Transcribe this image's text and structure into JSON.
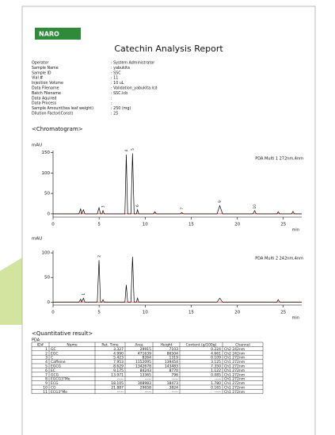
{
  "logo": "NARO",
  "title": "Catechin Analysis Report",
  "info": [
    {
      "label": "Operator",
      "value": ": System Administrator"
    },
    {
      "label": "Sample Name",
      "value": ": yabukita"
    },
    {
      "label": "Sample ID",
      "value": ": SSC"
    },
    {
      "label": "Vial #",
      "value": ": 11"
    },
    {
      "label": "Injection Volume",
      "value": ": 10 uL"
    },
    {
      "label": "Data Filename",
      "value": ": Validation_yabukita.lcd"
    },
    {
      "label": "Batch Filename",
      "value": ": SSC.lcb"
    },
    {
      "label": "Data Aquired",
      "value": ":"
    },
    {
      "label": "Data Process",
      "value": ":"
    },
    {
      "label": "Sample Amount(tea leaf weight)",
      "value": ": 250 (mg)"
    },
    {
      "label": "Dilution Factor(Const)",
      "value": ": 25"
    }
  ],
  "chromatogram_heading": "<Chromatogram>",
  "charts": [
    {
      "type": "line",
      "y_label": "mAU",
      "channel_label": "PDA Multi 1 272nm,4nm",
      "x_label": "min",
      "xlim": [
        0,
        27
      ],
      "xticks": [
        0,
        5,
        10,
        15,
        20,
        25
      ],
      "ylim": [
        -8,
        155
      ],
      "yticks": [
        0,
        50,
        100,
        150
      ],
      "color": "#000000",
      "baseline_color": "#e03020",
      "x": [
        0,
        2.8,
        3.0,
        3.1,
        3.3,
        3.45,
        4.8,
        4.99,
        5.15,
        5.3,
        5.42,
        5.55,
        7.8,
        7.95,
        8.1,
        8.45,
        8.63,
        8.8,
        9.05,
        9.17,
        9.3,
        10.9,
        11.05,
        11.2,
        13.8,
        13.97,
        14.15,
        17.8,
        18.1,
        18.4,
        21.7,
        21.89,
        22.05,
        24.3,
        24.45,
        24.6,
        25.9,
        26.05,
        26.2,
        27
      ],
      "y": [
        0,
        0,
        12,
        0,
        10,
        0,
        0,
        15,
        0,
        0,
        8,
        0,
        0,
        145,
        0,
        0,
        148,
        0,
        0,
        10,
        0,
        0,
        5,
        0,
        0,
        3,
        0,
        0,
        20,
        0,
        0,
        8,
        0,
        0,
        5,
        0,
        0,
        6,
        0,
        0
      ],
      "peaks": [
        {
          "label": "3",
          "x": 5.42,
          "y": 8
        },
        {
          "label": "4",
          "x": 7.95,
          "y": 145
        },
        {
          "label": "5",
          "x": 8.63,
          "y": 148
        },
        {
          "label": "6",
          "x": 9.17,
          "y": 10
        },
        {
          "label": "7",
          "x": 13.97,
          "y": 3
        },
        {
          "label": "9",
          "x": 18.1,
          "y": 20
        },
        {
          "label": "10",
          "x": 21.89,
          "y": 8
        }
      ]
    },
    {
      "type": "line",
      "y_label": "mAU",
      "channel_label": "PDA Multi 2 242nm,4nm",
      "x_label": "min",
      "xlim": [
        0,
        27
      ],
      "xticks": [
        0,
        5,
        10,
        15,
        20,
        25
      ],
      "ylim": [
        -6,
        105
      ],
      "yticks": [
        0,
        50,
        100
      ],
      "color": "#000000",
      "baseline_color": "#e03020",
      "x": [
        0,
        2.8,
        3.0,
        3.1,
        3.3,
        3.45,
        4.8,
        4.99,
        5.15,
        5.3,
        5.42,
        5.55,
        7.8,
        7.95,
        8.1,
        8.45,
        8.63,
        8.8,
        9.05,
        9.17,
        9.3,
        17.8,
        18.1,
        18.4,
        24.3,
        24.45,
        24.6,
        27
      ],
      "y": [
        0,
        0,
        6,
        0,
        8,
        0,
        0,
        85,
        0,
        0,
        5,
        0,
        0,
        35,
        0,
        0,
        92,
        0,
        0,
        8,
        0,
        0,
        8,
        0,
        0,
        5,
        0,
        0
      ],
      "peaks": [
        {
          "label": "1",
          "x": 3.3,
          "y": 8
        },
        {
          "label": "2",
          "x": 4.99,
          "y": 85
        }
      ]
    }
  ],
  "quantitative_heading": "<Quantitative result>",
  "table": {
    "caption": "PDA",
    "columns": [
      "ID#",
      "Name",
      "Ret. Time",
      "Area",
      "Height",
      "Content (g/100g)",
      "Channel"
    ],
    "rows": [
      [
        "1",
        "GC",
        "3.327",
        "29915",
        "7103",
        "0.224",
        "Ch2 242nm"
      ],
      [
        "2",
        "EGC",
        "4.990",
        "471639",
        "86504",
        "4.661",
        "Ch2 242nm"
      ],
      [
        "3",
        "C",
        "5.423",
        "8264",
        "1319",
        "0.109",
        "Ch1 272nm"
      ],
      [
        "4",
        "Caffeine",
        "7.953",
        "1152095",
        "139454",
        "3.125",
        "Ch1 272nm"
      ],
      [
        "5",
        "EGCG",
        "8.629",
        "1342678",
        "143483",
        "7.350",
        "Ch1 272nm"
      ],
      [
        "6",
        "EC",
        "9.175",
        "84243",
        "8770",
        "1.122",
        "Ch1 272nm"
      ],
      [
        "7",
        "GCG",
        "13.971",
        "13365",
        "796",
        "0.085",
        "Ch1 272nm"
      ],
      [
        "8",
        "EGCG3\"Me",
        "-----",
        "-----",
        "-----",
        "-----",
        "Ch1 272nm"
      ],
      [
        "9",
        "ECG",
        "18.105",
        "308983",
        "18473",
        "1.780",
        "Ch1 272nm"
      ],
      [
        "10",
        "CG",
        "21.887",
        "29658",
        "3824",
        "0.165",
        "Ch1 272nm"
      ],
      [
        "11",
        "ECG3\"Me",
        "-----",
        "-----",
        "-----",
        "-----",
        "Ch1 272nm"
      ]
    ]
  }
}
